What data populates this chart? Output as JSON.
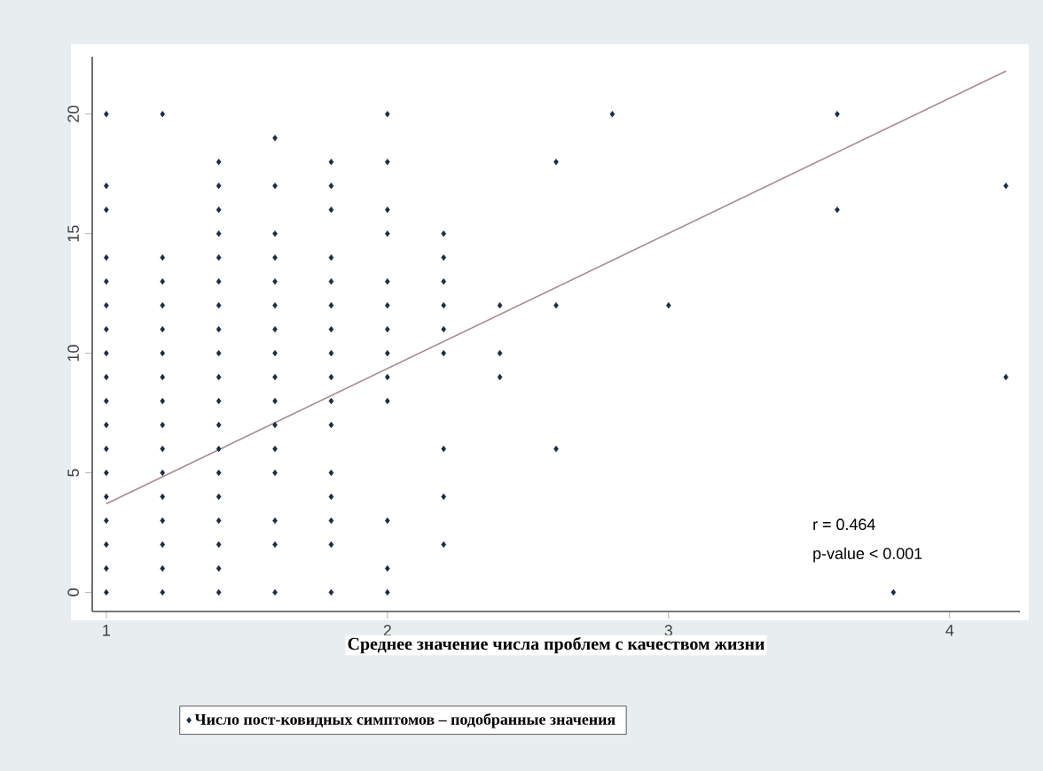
{
  "chart_data": {
    "type": "scatter",
    "xlabel": "Среднее значение числа проблем с качеством жизни",
    "xlim": [
      0.95,
      4.25
    ],
    "ylim": [
      -0.8,
      22.4
    ],
    "xticks": [
      1,
      2,
      3,
      4
    ],
    "yticks": [
      0,
      5,
      10,
      15,
      20
    ],
    "marker": "diamond",
    "legend": "bottom",
    "grid": false,
    "annotations": [
      "r = 0.464",
      "p-value < 0.001"
    ],
    "series": [
      {
        "name": "Число пост-ковидных симптомов – подобранные значения",
        "color": "#1a2a4a",
        "x": [
          1,
          1,
          1,
          1,
          1,
          1,
          1,
          1,
          1,
          1,
          1,
          1,
          1,
          1,
          1,
          1,
          1,
          1,
          1.2,
          1.2,
          1.2,
          1.2,
          1.2,
          1.2,
          1.2,
          1.2,
          1.2,
          1.2,
          1.2,
          1.2,
          1.2,
          1.2,
          1.2,
          1.2,
          1.4,
          1.4,
          1.4,
          1.4,
          1.4,
          1.4,
          1.4,
          1.4,
          1.4,
          1.4,
          1.4,
          1.4,
          1.4,
          1.4,
          1.4,
          1.4,
          1.4,
          1.4,
          1.4,
          1.6,
          1.6,
          1.6,
          1.6,
          1.6,
          1.6,
          1.6,
          1.6,
          1.6,
          1.6,
          1.6,
          1.6,
          1.6,
          1.6,
          1.6,
          1.6,
          1.8,
          1.8,
          1.8,
          1.8,
          1.8,
          1.8,
          1.8,
          1.8,
          1.8,
          1.8,
          1.8,
          1.8,
          1.8,
          1.8,
          1.8,
          1.8,
          2,
          2,
          2,
          2,
          2,
          2,
          2,
          2,
          2,
          2,
          2,
          2,
          2,
          2.2,
          2.2,
          2.2,
          2.2,
          2.2,
          2.2,
          2.2,
          2.2,
          2.2,
          2.4,
          2.4,
          2.4,
          2.6,
          2.6,
          2.6,
          2.8,
          3,
          3.6,
          3.6,
          3.8,
          4.2,
          4.2
        ],
        "values": [
          0,
          1,
          2,
          3,
          4,
          5,
          6,
          7,
          8,
          9,
          10,
          11,
          12,
          13,
          14,
          16,
          17,
          20,
          0,
          1,
          2,
          3,
          4,
          5,
          6,
          7,
          8,
          9,
          10,
          11,
          12,
          13,
          14,
          20,
          0,
          1,
          2,
          3,
          4,
          5,
          6,
          7,
          8,
          9,
          10,
          11,
          12,
          13,
          14,
          15,
          16,
          17,
          18,
          0,
          2,
          3,
          5,
          6,
          7,
          8,
          9,
          10,
          11,
          12,
          13,
          14,
          15,
          17,
          19,
          0,
          2,
          3,
          4,
          5,
          7,
          8,
          9,
          10,
          11,
          12,
          13,
          14,
          16,
          17,
          18,
          0,
          1,
          3,
          8,
          9,
          10,
          11,
          12,
          13,
          15,
          16,
          18,
          20,
          2,
          4,
          6,
          10,
          11,
          12,
          13,
          14,
          15,
          9,
          10,
          12,
          6,
          12,
          18,
          20,
          12,
          16,
          20,
          0,
          9,
          17
        ]
      },
      {
        "type": "line",
        "marker": "none",
        "color": "#a88a8e",
        "x": [
          1,
          4.2
        ],
        "values": [
          3.7,
          21.8
        ]
      }
    ]
  }
}
